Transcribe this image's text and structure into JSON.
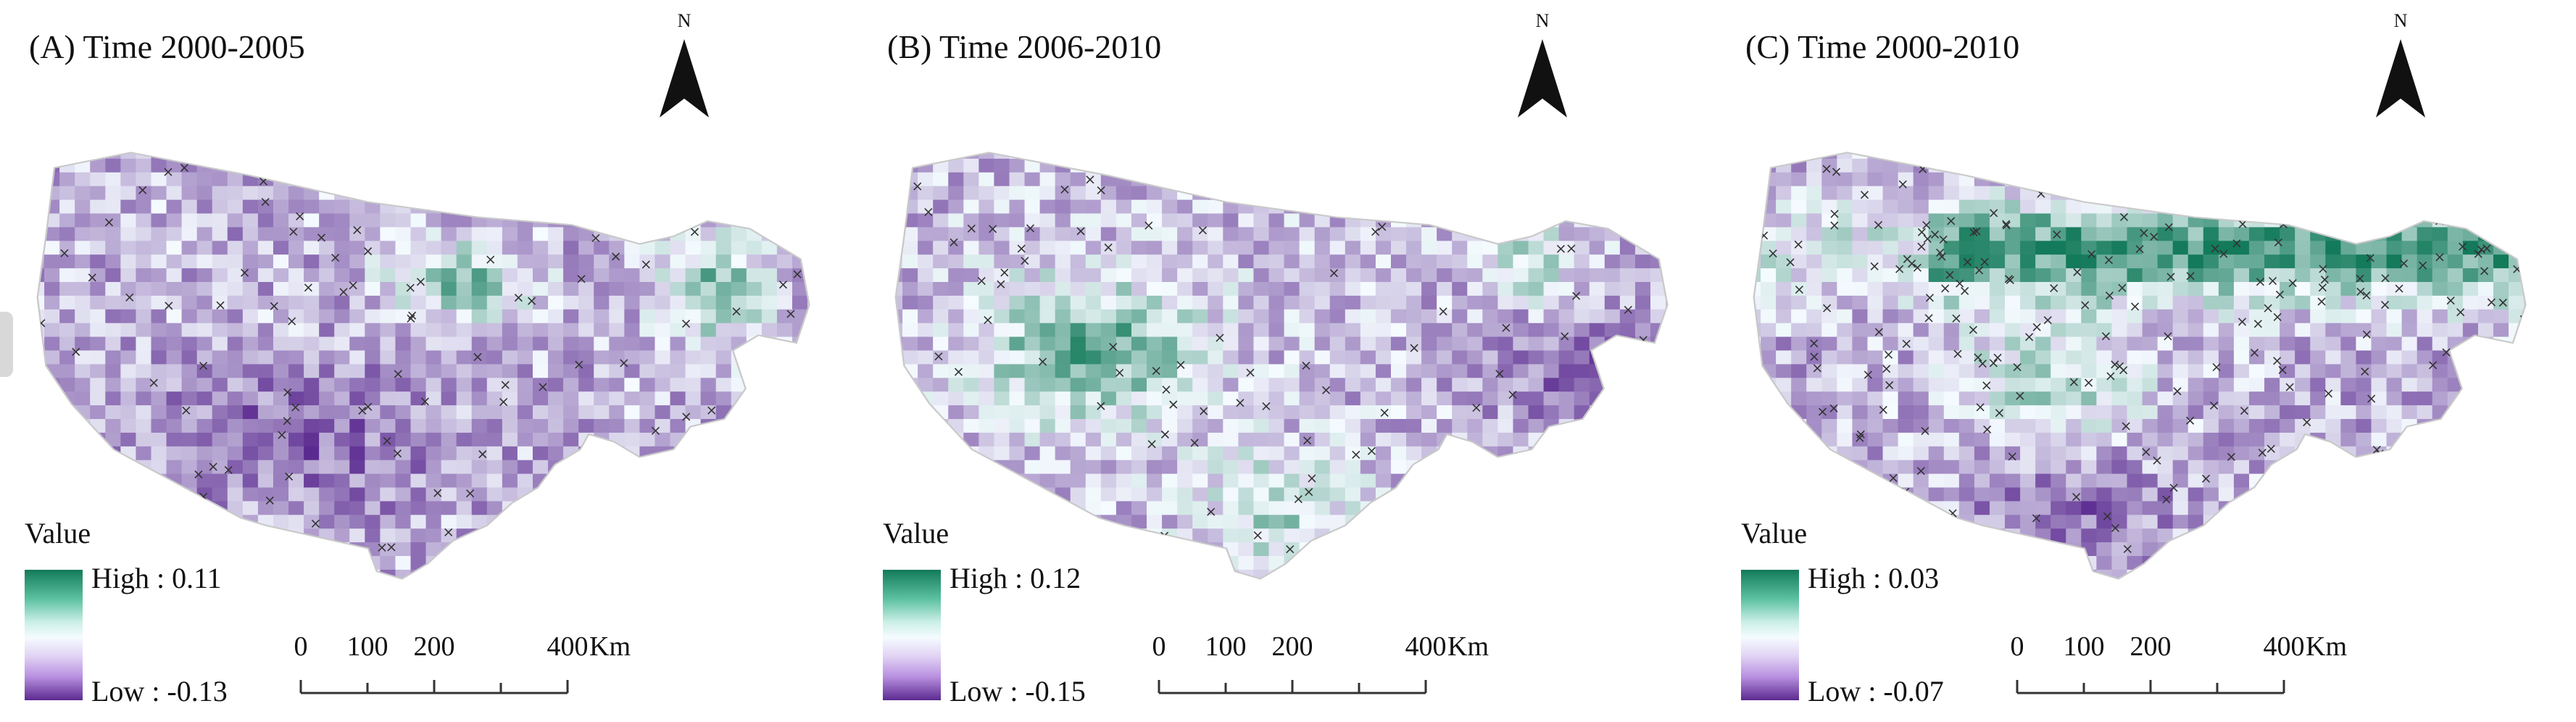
{
  "north_label": "N",
  "unit": "Km",
  "legend_title": "Value",
  "scale_ticks": [
    "0",
    "100",
    "200",
    "400"
  ],
  "scale_values": [
    0,
    100,
    200,
    400
  ],
  "colors": {
    "high": "#137a5a",
    "mid": "#f5fbff",
    "low": "#5b2a90",
    "outline": "#c9c9c9",
    "marker": "#333333"
  },
  "icons": {
    "north_arrow": "north-arrow-icon",
    "sample_marker": "cross-marker-icon"
  },
  "panels": [
    {
      "title": "(A) Time 2000-2005",
      "high_label": "High : 0.11",
      "low_label": "Low : -0.13",
      "high": 0.11,
      "low": -0.13,
      "dominant": "purple",
      "marker_density": "sparse"
    },
    {
      "title": "(B) Time 2006-2010",
      "high_label": "High : 0.12",
      "low_label": "Low : -0.15",
      "high": 0.12,
      "low": -0.15,
      "dominant": "green-west",
      "marker_density": "medium"
    },
    {
      "title": "(C) Time 2000-2010",
      "high_label": "High : 0.03",
      "low_label": "Low : -0.07",
      "high": 0.03,
      "low": -0.07,
      "dominant": "green-north",
      "marker_density": "dense"
    }
  ]
}
